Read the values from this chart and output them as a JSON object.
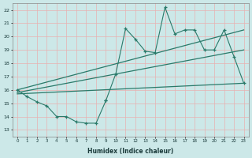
{
  "xlabel": "Humidex (Indice chaleur)",
  "background_color": "#cce8e8",
  "grid_color": "#e8b0b0",
  "line_color": "#2a7a6a",
  "xlim": [
    -0.5,
    23.5
  ],
  "ylim": [
    12.5,
    22.5
  ],
  "yticks": [
    13,
    14,
    15,
    16,
    17,
    18,
    19,
    20,
    21,
    22
  ],
  "xticks": [
    0,
    1,
    2,
    3,
    4,
    5,
    6,
    7,
    8,
    9,
    10,
    11,
    12,
    13,
    14,
    15,
    16,
    17,
    18,
    19,
    20,
    21,
    22,
    23
  ],
  "line_zigzag_low_x": [
    0,
    1,
    2,
    3,
    4,
    5,
    6,
    7,
    8,
    9
  ],
  "line_zigzag_low_y": [
    16.0,
    15.5,
    15.1,
    14.8,
    14.0,
    14.0,
    13.6,
    13.5,
    13.5,
    15.2
  ],
  "line_zigzag_high_x": [
    9,
    10,
    11,
    12,
    13,
    14,
    15,
    16,
    17,
    18,
    19,
    20,
    21,
    22,
    23
  ],
  "line_zigzag_high_y": [
    15.2,
    17.2,
    20.6,
    19.8,
    18.9,
    18.8,
    22.2,
    20.2,
    20.5,
    20.5,
    19.0,
    19.0,
    20.5,
    18.5,
    16.5
  ],
  "line_upper_trend_x": [
    0,
    23
  ],
  "line_upper_trend_y": [
    16.0,
    20.5
  ],
  "line_mid_trend_x": [
    0,
    23
  ],
  "line_mid_trend_y": [
    15.8,
    19.0
  ],
  "line_lower_trend_x": [
    0,
    23
  ],
  "line_lower_trend_y": [
    15.7,
    16.5
  ]
}
